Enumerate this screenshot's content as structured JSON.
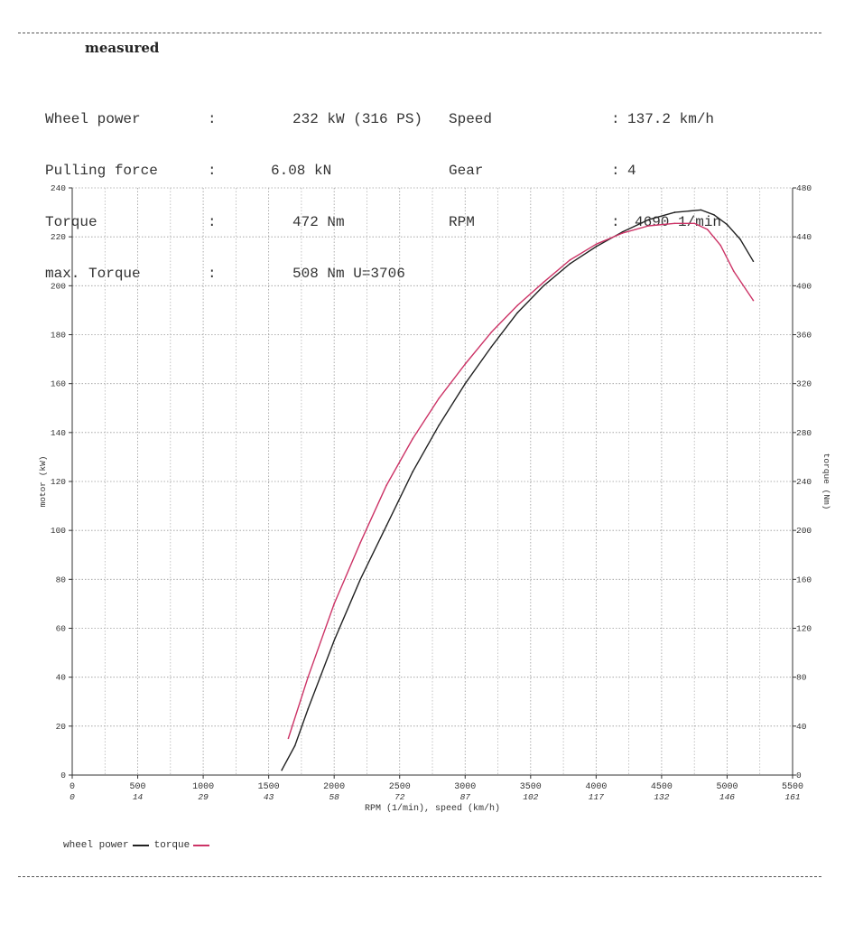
{
  "report": {
    "title": "measured"
  },
  "info_left": [
    {
      "label": "Wheel power",
      "colon": ":",
      "value": "232 kW (316 PS)"
    },
    {
      "label": "Pulling force",
      "colon": ":",
      "value": "6.08 kN"
    },
    {
      "label": "Torque",
      "colon": ":",
      "value": "472 Nm"
    },
    {
      "label": "max. Torque",
      "colon": ":",
      "value": "508 Nm U=3706"
    }
  ],
  "info_right": [
    {
      "label": "Speed",
      "colon": ":",
      "value": "137.2 km/h"
    },
    {
      "label": "Gear",
      "colon": ":",
      "value": "4"
    },
    {
      "label": "RPM",
      "colon": ":",
      "value": "4690 1/min"
    }
  ],
  "chart_data": {
    "type": "line",
    "xlabel": "RPM  (1/min), speed (km/h)",
    "ylabel_left": "motor (kW)",
    "ylabel_right": "torque (Nm)",
    "xlim": [
      0,
      5500
    ],
    "ylim_left": [
      0,
      240
    ],
    "ylim_right": [
      0,
      480
    ],
    "x_ticks": [
      0,
      500,
      1000,
      1500,
      2000,
      2500,
      3000,
      3500,
      4000,
      4500,
      5000,
      5500
    ],
    "x_tick_labels": [
      "0",
      "500",
      "1000",
      "1500",
      "2000",
      "2500",
      "3000",
      "3500",
      "4000",
      "4500",
      "5000",
      "5500"
    ],
    "x_speed_labels": [
      "0",
      "14",
      "29",
      "43",
      "58",
      "72",
      "87",
      "102",
      "117",
      "132",
      "146",
      "161"
    ],
    "y_left_ticks": [
      0,
      20,
      40,
      60,
      80,
      100,
      120,
      140,
      160,
      180,
      200,
      220,
      240
    ],
    "y_right_ticks": [
      0,
      40,
      80,
      120,
      160,
      200,
      240,
      280,
      320,
      360,
      400,
      440,
      480
    ],
    "grid": true,
    "legend_position": "bottom-left",
    "series": [
      {
        "name": "wheel power",
        "axis": "left",
        "color": "#222222",
        "x": [
          1600,
          1700,
          1800,
          1900,
          2000,
          2200,
          2400,
          2600,
          2800,
          3000,
          3200,
          3400,
          3600,
          3800,
          4000,
          4200,
          4400,
          4600,
          4800,
          4900,
          5000,
          5100,
          5200
        ],
        "values": [
          2,
          12,
          27,
          41,
          55,
          80,
          102,
          124,
          143,
          160,
          175,
          189,
          200,
          209,
          216,
          222,
          227,
          230,
          231,
          229,
          225,
          219,
          210
        ]
      },
      {
        "name": "torque",
        "axis": "right",
        "color": "#cc3366",
        "x": [
          1650,
          1800,
          2000,
          2200,
          2400,
          2600,
          2800,
          3000,
          3200,
          3400,
          3600,
          3800,
          4000,
          4200,
          4400,
          4600,
          4750,
          4850,
          4950,
          5050,
          5200
        ],
        "values": [
          30,
          80,
          140,
          190,
          237,
          275,
          308,
          336,
          362,
          384,
          403,
          421,
          434,
          443,
          449,
          451,
          451,
          446,
          433,
          412,
          388
        ]
      }
    ]
  }
}
